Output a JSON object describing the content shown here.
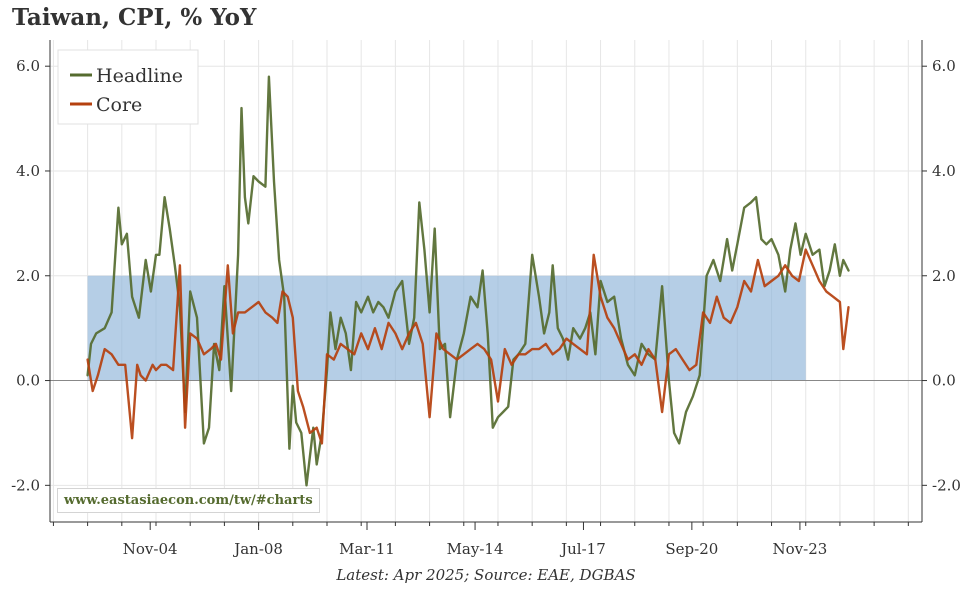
{
  "title": "Taiwan, CPI, % YoY",
  "footer": "Latest: Apr 2025; Source: EAE, DGBAS",
  "watermark": "www.eastasiaecon.com/tw/#charts",
  "colors": {
    "headline": "#556b2f",
    "core": "#b5400e",
    "band": "#8db3d9",
    "grid": "#e6e6e6",
    "zero": "#888888"
  },
  "chart_data": {
    "type": "line",
    "title": "Taiwan, CPI, % YoY",
    "x_unit": "year (decimal)",
    "xlim": [
      2001.9,
      2027.4
    ],
    "ylim": [
      -2.7,
      6.5
    ],
    "yticks": [
      -2.0,
      0.0,
      2.0,
      4.0,
      6.0
    ],
    "yticklabels": [
      "-2.0",
      "0.0",
      "2.0",
      "4.0",
      "6.0"
    ],
    "xticks": [
      2004.83,
      2008.0,
      2011.17,
      2014.33,
      2017.5,
      2020.67,
      2023.83
    ],
    "xticklabels": [
      "Nov-04",
      "Jan-08",
      "Mar-11",
      "May-14",
      "Jul-17",
      "Sep-20",
      "Nov-23"
    ],
    "target_band": {
      "x": [
        2003.0,
        2024.0
      ],
      "y": [
        0.0,
        2.0
      ]
    },
    "grid": true,
    "legend": {
      "position": "top-left",
      "entries": [
        "Headline",
        "Core"
      ]
    },
    "series": [
      {
        "name": "Headline",
        "x": [
          2003.0,
          2003.1,
          2003.25,
          2003.5,
          2003.7,
          2003.9,
          2004.0,
          2004.15,
          2004.3,
          2004.5,
          2004.7,
          2004.85,
          2005.0,
          2005.1,
          2005.25,
          2005.4,
          2005.55,
          2005.7,
          2005.85,
          2006.0,
          2006.2,
          2006.4,
          2006.55,
          2006.7,
          2006.85,
          2007.0,
          2007.2,
          2007.4,
          2007.5,
          2007.6,
          2007.7,
          2007.85,
          2008.0,
          2008.2,
          2008.3,
          2008.45,
          2008.6,
          2008.75,
          2008.9,
          2009.0,
          2009.1,
          2009.25,
          2009.4,
          2009.6,
          2009.7,
          2009.85,
          2010.0,
          2010.1,
          2010.25,
          2010.4,
          2010.55,
          2010.7,
          2010.85,
          2011.0,
          2011.2,
          2011.35,
          2011.5,
          2011.65,
          2011.8,
          2012.0,
          2012.2,
          2012.4,
          2012.55,
          2012.7,
          2012.85,
          2013.0,
          2013.15,
          2013.3,
          2013.45,
          2013.6,
          2013.8,
          2014.0,
          2014.2,
          2014.4,
          2014.55,
          2014.7,
          2014.85,
          2015.0,
          2015.15,
          2015.3,
          2015.45,
          2015.6,
          2015.8,
          2016.0,
          2016.2,
          2016.35,
          2016.5,
          2016.6,
          2016.75,
          2016.9,
          2017.05,
          2017.2,
          2017.4,
          2017.55,
          2017.7,
          2017.85,
          2018.0,
          2018.2,
          2018.4,
          2018.6,
          2018.8,
          2019.0,
          2019.2,
          2019.4,
          2019.6,
          2019.8,
          2020.0,
          2020.15,
          2020.3,
          2020.5,
          2020.7,
          2020.9,
          2021.1,
          2021.3,
          2021.5,
          2021.7,
          2021.85,
          2022.0,
          2022.2,
          2022.4,
          2022.55,
          2022.7,
          2022.85,
          2023.0,
          2023.2,
          2023.4,
          2023.55,
          2023.7,
          2023.85,
          2024.0,
          2024.2,
          2024.4,
          2024.55,
          2024.7,
          2024.85,
          2025.0,
          2025.1,
          2025.25
        ],
        "values": [
          0.1,
          0.7,
          0.9,
          1.0,
          1.3,
          3.3,
          2.6,
          2.8,
          1.6,
          1.2,
          2.3,
          1.7,
          2.4,
          2.4,
          3.5,
          2.9,
          2.2,
          1.4,
          -0.6,
          1.7,
          1.2,
          -1.2,
          -0.9,
          0.7,
          0.2,
          1.8,
          -0.2,
          2.4,
          5.2,
          3.5,
          3.0,
          3.9,
          3.8,
          3.7,
          5.8,
          3.8,
          2.3,
          1.6,
          -1.3,
          -0.1,
          -0.8,
          -1.0,
          -2.0,
          -0.9,
          -1.6,
          -1.0,
          0.2,
          1.3,
          0.6,
          1.2,
          0.9,
          0.2,
          1.5,
          1.3,
          1.6,
          1.3,
          1.5,
          1.4,
          1.2,
          1.7,
          1.9,
          0.7,
          1.2,
          3.4,
          2.5,
          1.3,
          2.9,
          0.6,
          0.7,
          -0.7,
          0.4,
          0.9,
          1.6,
          1.4,
          2.1,
          0.9,
          -0.9,
          -0.7,
          -0.6,
          -0.5,
          0.4,
          0.5,
          0.7,
          2.4,
          1.6,
          0.9,
          1.3,
          2.2,
          1.0,
          0.8,
          0.4,
          1.0,
          0.8,
          1.0,
          1.3,
          0.5,
          1.9,
          1.5,
          1.6,
          0.8,
          0.3,
          0.1,
          0.7,
          0.5,
          0.4,
          1.8,
          0.0,
          -1.0,
          -1.2,
          -0.6,
          -0.3,
          0.1,
          2.0,
          2.3,
          1.9,
          2.7,
          2.1,
          2.6,
          3.3,
          3.4,
          3.5,
          2.7,
          2.6,
          2.7,
          2.4,
          1.7,
          2.5,
          3.0,
          2.4,
          2.8,
          2.4,
          2.5,
          1.8,
          2.1,
          2.6,
          2.0,
          2.3,
          2.1
        ]
      },
      {
        "name": "Core",
        "x": [
          2003.0,
          2003.15,
          2003.3,
          2003.5,
          2003.7,
          2003.9,
          2004.1,
          2004.3,
          2004.45,
          2004.55,
          2004.7,
          2004.9,
          2005.0,
          2005.15,
          2005.3,
          2005.5,
          2005.7,
          2005.85,
          2006.0,
          2006.2,
          2006.4,
          2006.6,
          2006.75,
          2006.9,
          2007.1,
          2007.25,
          2007.4,
          2007.6,
          2007.8,
          2008.0,
          2008.2,
          2008.4,
          2008.55,
          2008.7,
          2008.85,
          2009.0,
          2009.15,
          2009.3,
          2009.5,
          2009.7,
          2009.85,
          2010.0,
          2010.2,
          2010.4,
          2010.6,
          2010.8,
          2011.0,
          2011.2,
          2011.4,
          2011.6,
          2011.8,
          2012.0,
          2012.2,
          2012.4,
          2012.6,
          2012.8,
          2013.0,
          2013.2,
          2013.4,
          2013.6,
          2013.8,
          2014.0,
          2014.2,
          2014.4,
          2014.6,
          2014.8,
          2015.0,
          2015.2,
          2015.4,
          2015.6,
          2015.8,
          2016.0,
          2016.2,
          2016.4,
          2016.6,
          2016.8,
          2017.0,
          2017.2,
          2017.4,
          2017.6,
          2017.8,
          2018.0,
          2018.2,
          2018.4,
          2018.6,
          2018.8,
          2019.0,
          2019.2,
          2019.4,
          2019.6,
          2019.8,
          2020.0,
          2020.2,
          2020.4,
          2020.6,
          2020.8,
          2021.0,
          2021.2,
          2021.4,
          2021.6,
          2021.8,
          2022.0,
          2022.2,
          2022.4,
          2022.6,
          2022.8,
          2023.0,
          2023.2,
          2023.4,
          2023.6,
          2023.8,
          2024.0,
          2024.2,
          2024.4,
          2024.6,
          2024.8,
          2025.0,
          2025.1,
          2025.25
        ],
        "values": [
          0.4,
          -0.2,
          0.1,
          0.6,
          0.5,
          0.3,
          0.3,
          -1.1,
          0.3,
          0.1,
          0.0,
          0.3,
          0.2,
          0.3,
          0.3,
          0.2,
          2.2,
          -0.9,
          0.9,
          0.8,
          0.5,
          0.6,
          0.7,
          0.4,
          2.2,
          0.9,
          1.3,
          1.3,
          1.4,
          1.5,
          1.3,
          1.2,
          1.1,
          1.7,
          1.6,
          1.2,
          -0.2,
          -0.5,
          -1.0,
          -0.9,
          -1.2,
          0.5,
          0.4,
          0.7,
          0.6,
          0.5,
          0.9,
          0.6,
          1.0,
          0.6,
          1.1,
          0.9,
          0.6,
          0.9,
          1.1,
          0.7,
          -0.7,
          0.9,
          0.6,
          0.5,
          0.4,
          0.5,
          0.6,
          0.7,
          0.6,
          0.4,
          -0.4,
          0.6,
          0.3,
          0.5,
          0.5,
          0.6,
          0.6,
          0.7,
          0.5,
          0.6,
          0.8,
          0.7,
          0.6,
          0.5,
          2.4,
          1.6,
          1.2,
          1.0,
          0.7,
          0.4,
          0.5,
          0.3,
          0.6,
          0.4,
          -0.6,
          0.5,
          0.6,
          0.4,
          0.2,
          0.3,
          1.3,
          1.1,
          1.6,
          1.2,
          1.1,
          1.4,
          1.9,
          1.7,
          2.3,
          1.8,
          1.9,
          2.0,
          2.2,
          2.0,
          1.9,
          2.5,
          2.2,
          1.9,
          1.7,
          1.6,
          1.5,
          0.6,
          1.4
        ]
      }
    ]
  }
}
